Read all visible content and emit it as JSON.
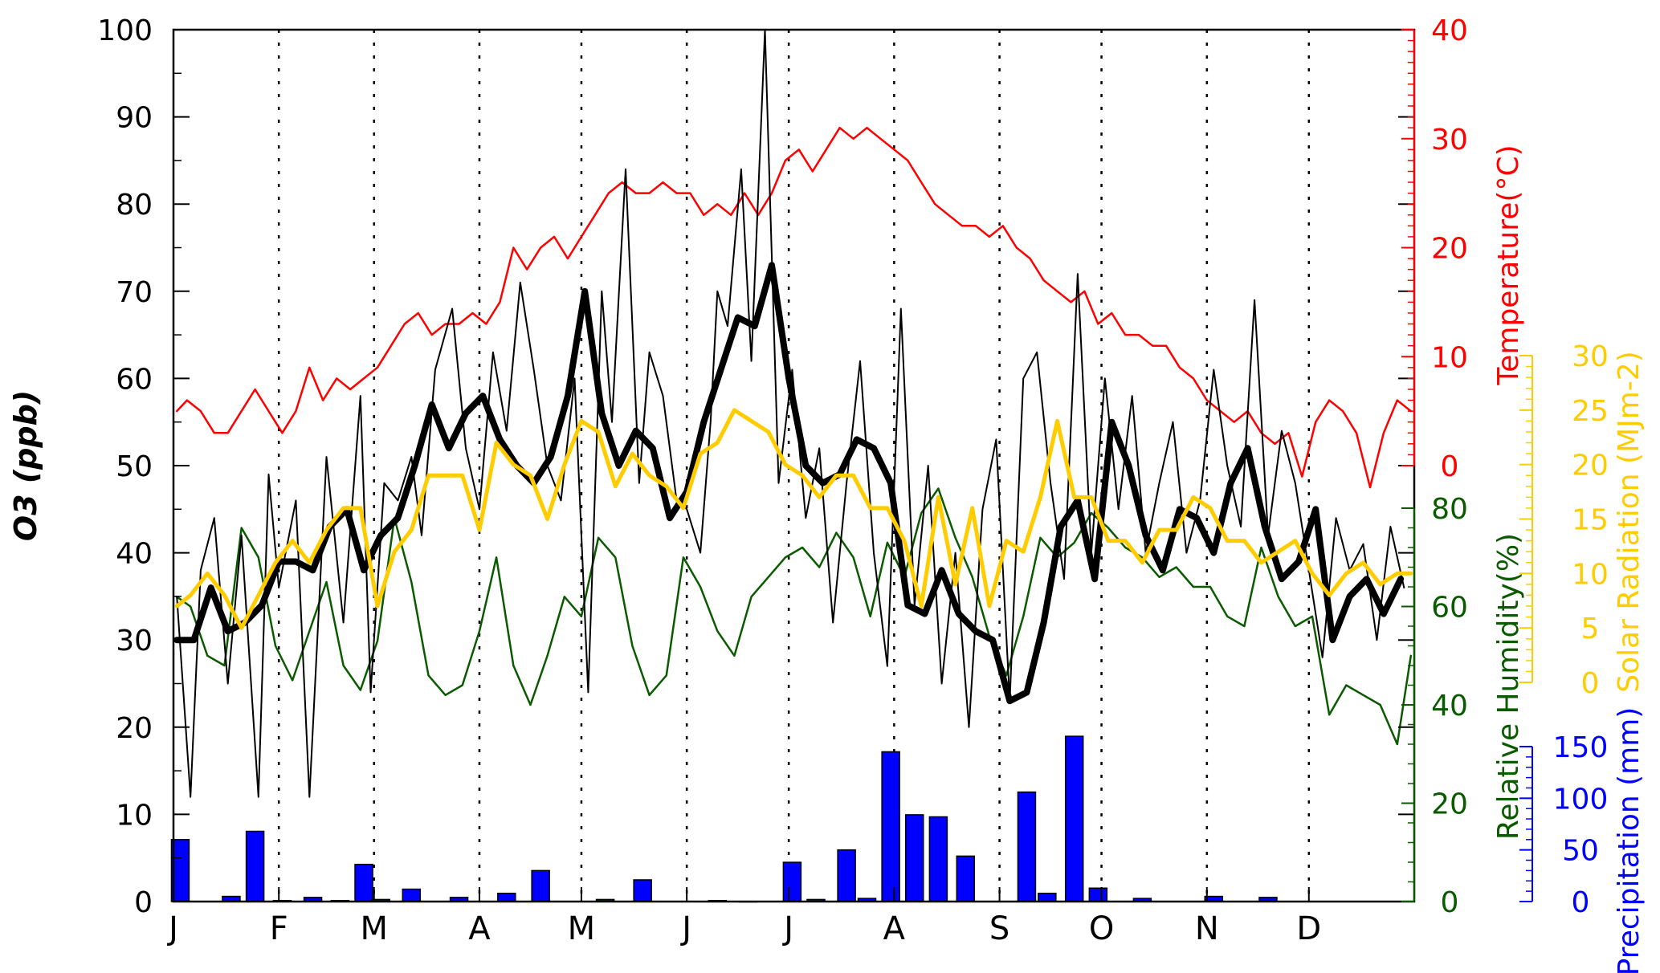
{
  "chart_data": {
    "type": "line",
    "xlabel": "",
    "x_months": [
      "J",
      "F",
      "M",
      "A",
      "M",
      "J",
      "J",
      "A",
      "S",
      "O",
      "N",
      "D"
    ],
    "left_axis": {
      "ylabel": "O3 (ppb)",
      "ylim": [
        0,
        100
      ],
      "ticks": [
        "0",
        "10",
        "20",
        "30",
        "40",
        "50",
        "60",
        "70",
        "80",
        "90",
        "100"
      ]
    },
    "temperature_axis": {
      "label": "Temperature(°C)",
      "color": "#ff0000",
      "ylim": [
        0,
        40
      ],
      "ticks": [
        "0",
        "10",
        "20",
        "30",
        "40"
      ]
    },
    "humidity_axis": {
      "label": "Relative Humidity(%)",
      "color": "#0a5a00",
      "ylim": [
        0,
        80
      ],
      "ticks": [
        "0",
        "20",
        "40",
        "60",
        "80"
      ]
    },
    "solar_axis": {
      "label": "Solar Radiation (MJm-2)",
      "color": "#ffcc00",
      "ylim": [
        0,
        30
      ],
      "ticks": [
        "0",
        "5",
        "10",
        "15",
        "20",
        "25",
        "30"
      ]
    },
    "precip_axis": {
      "label": "Precipitation (mm)",
      "color": "#0000ff",
      "ylim": [
        0,
        150
      ],
      "ticks": [
        "0",
        "50",
        "100",
        "150"
      ]
    },
    "series": [
      {
        "key": "o3_daily",
        "style": "thin",
        "color": "#000000",
        "axis": "o3",
        "x": [
          1,
          5,
          8,
          12,
          16,
          20,
          25,
          28,
          31,
          36,
          40,
          45,
          50,
          55,
          58,
          62,
          66,
          70,
          73,
          77,
          82,
          86,
          90,
          94,
          98,
          102,
          106,
          110,
          114,
          118,
          122,
          126,
          129,
          133,
          137,
          140,
          144,
          148,
          151,
          155,
          158,
          160,
          163,
          167,
          170,
          174,
          178,
          182,
          186,
          190,
          194,
          198,
          202,
          206,
          210,
          214,
          218,
          222,
          226,
          230,
          234,
          238,
          242,
          246,
          250,
          254,
          258,
          262,
          266,
          270,
          274,
          278,
          282,
          286,
          290,
          294,
          298,
          302,
          306,
          310,
          314,
          318,
          322,
          326,
          330,
          334,
          338,
          342,
          346,
          350,
          354,
          358,
          362
        ],
        "y": [
          35,
          12,
          38,
          44,
          25,
          42,
          12,
          49,
          36,
          46,
          12,
          51,
          32,
          58,
          24,
          48,
          46,
          51,
          42,
          61,
          68,
          52,
          45,
          63,
          54,
          71,
          61,
          50,
          46,
          60,
          24,
          70,
          55,
          84,
          48,
          63,
          58,
          46,
          45,
          40,
          55,
          70,
          66,
          84,
          62,
          100,
          48,
          61,
          44,
          52,
          32,
          48,
          62,
          40,
          27,
          68,
          34,
          50,
          25,
          40,
          20,
          45,
          53,
          23,
          60,
          63,
          48,
          37,
          72,
          40,
          60,
          45,
          58,
          40,
          48,
          55,
          40,
          46,
          61,
          50,
          43,
          69,
          42,
          54,
          48,
          38,
          28,
          44,
          38,
          41,
          30,
          43,
          36
        ]
      },
      {
        "key": "o3_smoothed",
        "style": "thick",
        "color": "#000000",
        "axis": "o3",
        "x": [
          1,
          6,
          11,
          16,
          21,
          26,
          31,
          36,
          41,
          46,
          51,
          56,
          61,
          66,
          71,
          76,
          81,
          86,
          91,
          96,
          101,
          106,
          111,
          116,
          121,
          126,
          131,
          136,
          141,
          146,
          151,
          156,
          161,
          166,
          171,
          176,
          181,
          186,
          191,
          196,
          201,
          206,
          211,
          216,
          221,
          226,
          231,
          236,
          241,
          246,
          251,
          256,
          261,
          266,
          271,
          276,
          281,
          286,
          291,
          296,
          301,
          306,
          311,
          316,
          321,
          326,
          331,
          336,
          341,
          346,
          351,
          356,
          361
        ],
        "y": [
          30,
          30,
          36,
          31,
          32,
          34,
          39,
          39,
          38,
          43,
          45,
          38,
          42,
          44,
          50,
          57,
          52,
          56,
          58,
          53,
          50,
          48,
          51,
          58,
          70,
          56,
          50,
          54,
          52,
          44,
          47,
          55,
          61,
          67,
          66,
          73,
          60,
          50,
          48,
          49,
          53,
          52,
          48,
          34,
          33,
          38,
          33,
          31,
          30,
          23,
          24,
          32,
          43,
          46,
          37,
          55,
          50,
          42,
          38,
          45,
          44,
          40,
          48,
          52,
          43,
          37,
          39,
          45,
          30,
          35,
          37,
          33,
          37
        ]
      },
      {
        "key": "temperature",
        "color": "#ff0000",
        "axis": "temperature",
        "x": [
          1,
          4,
          8,
          12,
          16,
          20,
          24,
          28,
          32,
          36,
          40,
          44,
          48,
          52,
          56,
          60,
          64,
          68,
          72,
          76,
          80,
          84,
          88,
          92,
          96,
          100,
          104,
          108,
          112,
          116,
          120,
          124,
          128,
          132,
          136,
          140,
          144,
          148,
          152,
          156,
          160,
          164,
          168,
          172,
          176,
          180,
          184,
          188,
          192,
          196,
          200,
          204,
          208,
          212,
          216,
          220,
          224,
          228,
          232,
          236,
          240,
          244,
          248,
          252,
          256,
          260,
          264,
          268,
          272,
          276,
          280,
          284,
          288,
          292,
          296,
          300,
          304,
          308,
          312,
          316,
          320,
          324,
          328,
          332,
          336,
          340,
          344,
          348,
          352,
          356,
          360,
          364
        ],
        "y": [
          5,
          6,
          5,
          3,
          3,
          5,
          7,
          5,
          3,
          5,
          9,
          6,
          8,
          7,
          8,
          9,
          11,
          13,
          14,
          12,
          13,
          13,
          14,
          13,
          15,
          20,
          18,
          20,
          21,
          19,
          21,
          23,
          25,
          26,
          25,
          25,
          26,
          25,
          25,
          23,
          24,
          23,
          25,
          23,
          25,
          28,
          29,
          27,
          29,
          31,
          30,
          31,
          30,
          29,
          28,
          26,
          24,
          23,
          22,
          22,
          21,
          22,
          20,
          19,
          17,
          16,
          15,
          16,
          13,
          14,
          12,
          12,
          11,
          11,
          9,
          8,
          6,
          5,
          4,
          5,
          3,
          2,
          3,
          -1,
          4,
          6,
          5,
          3,
          -2,
          3,
          6,
          5
        ]
      },
      {
        "key": "humidity",
        "color": "#0a5a00",
        "axis": "humidity",
        "x": [
          1,
          5,
          10,
          15,
          20,
          25,
          30,
          35,
          40,
          45,
          50,
          55,
          60,
          65,
          70,
          75,
          80,
          85,
          90,
          95,
          100,
          105,
          110,
          115,
          120,
          125,
          130,
          135,
          140,
          145,
          150,
          155,
          160,
          165,
          170,
          175,
          180,
          185,
          190,
          195,
          200,
          205,
          210,
          215,
          220,
          225,
          230,
          235,
          240,
          245,
          250,
          255,
          260,
          265,
          270,
          275,
          280,
          285,
          290,
          295,
          300,
          305,
          310,
          315,
          320,
          325,
          330,
          335,
          340,
          345,
          350,
          355,
          360,
          364
        ],
        "y": [
          62,
          60,
          50,
          48,
          76,
          70,
          52,
          45,
          55,
          65,
          48,
          43,
          53,
          78,
          65,
          46,
          42,
          44,
          55,
          70,
          48,
          40,
          50,
          62,
          58,
          74,
          70,
          52,
          42,
          46,
          70,
          64,
          55,
          50,
          62,
          66,
          70,
          72,
          68,
          75,
          70,
          58,
          73,
          66,
          79,
          84,
          74,
          66,
          54,
          46,
          58,
          74,
          70,
          73,
          79,
          76,
          72,
          70,
          66,
          68,
          64,
          64,
          58,
          56,
          72,
          62,
          56,
          58,
          38,
          44,
          42,
          40,
          32,
          50
        ]
      },
      {
        "key": "solar_radiation",
        "color": "#ffcc00",
        "axis": "solar",
        "x": [
          1,
          5,
          10,
          15,
          20,
          25,
          30,
          35,
          40,
          45,
          50,
          55,
          60,
          65,
          70,
          75,
          80,
          85,
          90,
          95,
          100,
          105,
          110,
          115,
          120,
          125,
          130,
          135,
          140,
          145,
          150,
          155,
          160,
          165,
          170,
          175,
          180,
          185,
          190,
          195,
          200,
          205,
          210,
          215,
          220,
          225,
          230,
          235,
          240,
          245,
          250,
          255,
          260,
          265,
          270,
          275,
          280,
          285,
          290,
          295,
          300,
          305,
          310,
          315,
          320,
          325,
          330,
          335,
          340,
          345,
          350,
          355,
          360,
          364
        ],
        "y": [
          7,
          8,
          10,
          8,
          5,
          8,
          11,
          13,
          11,
          14,
          16,
          16,
          7,
          12,
          14,
          19,
          19,
          19,
          14,
          22,
          20,
          19,
          15,
          20,
          24,
          23,
          18,
          21,
          19,
          18,
          16,
          21,
          22,
          25,
          24,
          23,
          20,
          19,
          17,
          19,
          19,
          16,
          16,
          13,
          7,
          17,
          9,
          16,
          7,
          13,
          12,
          17,
          24,
          17,
          17,
          13,
          13,
          11,
          14,
          14,
          17,
          16,
          13,
          13,
          11,
          12,
          13,
          10,
          8,
          10,
          11,
          9,
          10,
          10
        ]
      },
      {
        "key": "precipitation",
        "type": "bar",
        "color": "#0000ff",
        "axis": "precipitation",
        "x": [
          2,
          17,
          24,
          32,
          41,
          49,
          56,
          61,
          70,
          84,
          98,
          108,
          127,
          138,
          160,
          169,
          182,
          189,
          198,
          204,
          211,
          218,
          225,
          233,
          251,
          257,
          265,
          272,
          285,
          306,
          322
        ],
        "y": [
          60,
          5,
          68,
          1,
          4,
          1,
          36,
          2,
          12,
          4,
          8,
          30,
          2,
          21,
          1,
          0,
          38,
          2,
          50,
          3,
          145,
          84,
          82,
          44,
          106,
          8,
          160,
          13,
          3,
          5,
          4
        ]
      }
    ]
  }
}
